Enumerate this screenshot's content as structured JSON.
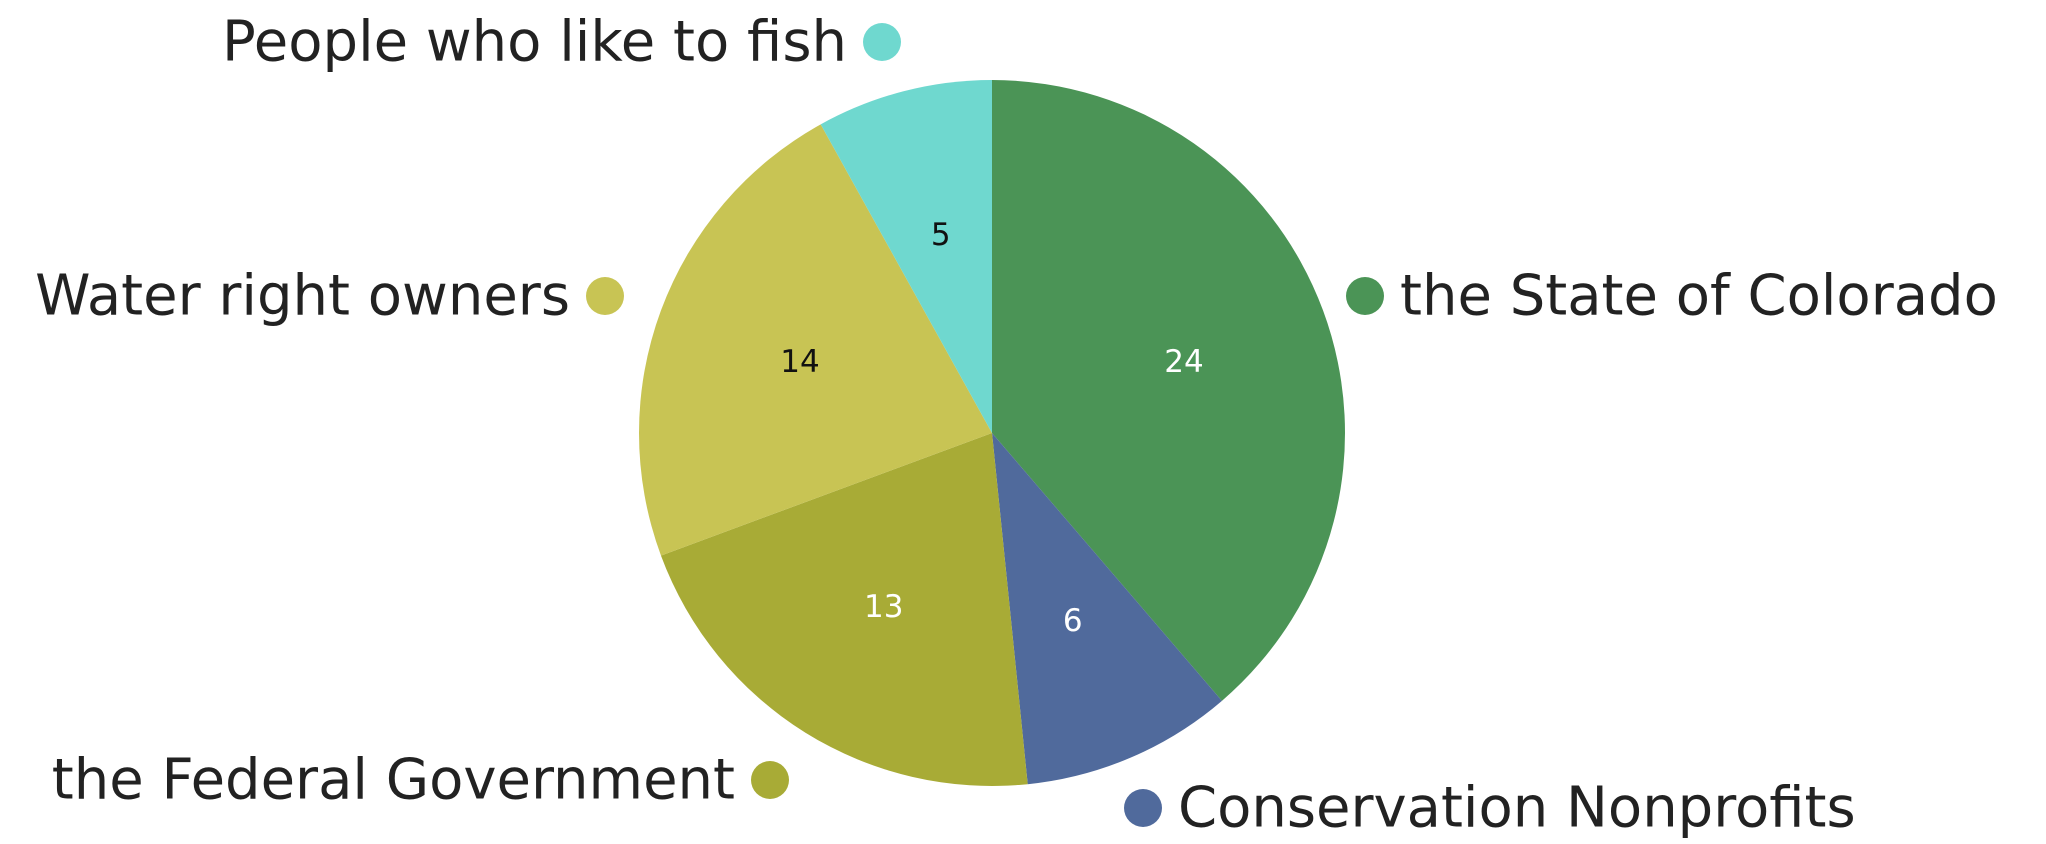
{
  "chart_data": {
    "type": "pie",
    "title": "",
    "start": "12 o'clock",
    "direction": "clockwise",
    "show_value_labels": true,
    "slices": [
      {
        "label": "the State of Colorado",
        "value": 24,
        "color": "#4b9456",
        "label_color": "#ffffff"
      },
      {
        "label": "Conservation Nonprofits",
        "value": 6,
        "color": "#506a9c",
        "label_color": "#ffffff"
      },
      {
        "label": "the Federal Government",
        "value": 13,
        "color": "#a8ab36",
        "label_color": "#ffffff"
      },
      {
        "label": "Water right owners",
        "value": 14,
        "color": "#c8c454",
        "label_color": "#111111"
      },
      {
        "label": "People who like to fish",
        "value": 5,
        "color": "#6fd8cf",
        "label_color": "#111111"
      }
    ]
  }
}
